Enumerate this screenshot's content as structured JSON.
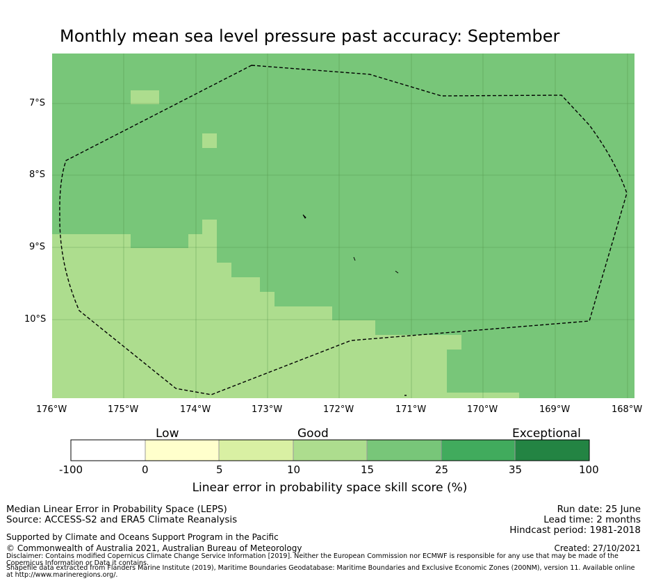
{
  "title": "Monthly mean sea level pressure past accuracy: September",
  "map": {
    "lat_labels": [
      "7°S",
      "8°S",
      "9°S",
      "10°S"
    ],
    "lon_labels": [
      "176°W",
      "175°W",
      "174°W",
      "173°W",
      "172°W",
      "171°W",
      "170°W",
      "169°W",
      "168°W"
    ],
    "colors": {
      "good": "#addd8e",
      "better": "#78c679",
      "boundary": "#000000"
    }
  },
  "colorbar": {
    "category_labels": [
      "Low",
      "Good",
      "Exceptional"
    ],
    "ticks": [
      "-100",
      "0",
      "5",
      "10",
      "15",
      "25",
      "35",
      "100"
    ],
    "colors": [
      "#ffffff",
      "#ffffcc",
      "#d9f0a3",
      "#addd8e",
      "#78c679",
      "#41ab5d",
      "#238443"
    ],
    "title": "Linear error in probability space skill score (%)"
  },
  "footer": {
    "left_line1": "Median Linear Error in Probability Space (LEPS)",
    "left_line2": "Source: ACCESS-S2 and ERA5 Climate Reanalysis",
    "run_date": "Run date: 25 June",
    "lead_time": "Lead time: 2 months",
    "hindcast": "Hindcast period: 1981-2018",
    "supported": "Supported by Climate and Oceans Support Program in the Pacific",
    "copyright": "© Commonwealth of Australia 2021, Australian Bureau of Meteorology",
    "created": "Created: 27/10/2021",
    "disclaimer": "Disclaimer: Contains modified Copernicus Climate Change Service Information [2019]. Neither the European Commission nor ECMWF is responsible for any use that may be made of the Copernicus Information or Data it contains.",
    "shapefile": "Shapefile data extracted from Flanders Marine Institute (2019), Maritime Boundaries Geodatabase: Maritime Boundaries and Exclusive Economic Zones (200NM), version 11. Available online at http://www.marineregions.org/."
  }
}
